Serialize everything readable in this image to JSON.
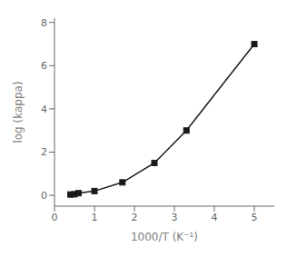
{
  "chart_data": {
    "type": "line",
    "x": [
      0.4,
      0.5,
      0.6,
      1.0,
      1.7,
      2.5,
      3.3,
      5.0
    ],
    "values": [
      0.04,
      0.05,
      0.1,
      0.2,
      0.6,
      1.5,
      3.0,
      7.0
    ],
    "xlabel": "1000/T (K⁻¹)",
    "ylabel": "log (kappa)",
    "xlim": [
      0,
      5.5
    ],
    "ylim": [
      -0.5,
      8.2
    ],
    "xticks": [
      0,
      1,
      2,
      3,
      4,
      5
    ],
    "yticks": [
      0,
      2,
      4,
      6,
      8
    ],
    "color": "#1a1a1a",
    "marker": "square"
  }
}
